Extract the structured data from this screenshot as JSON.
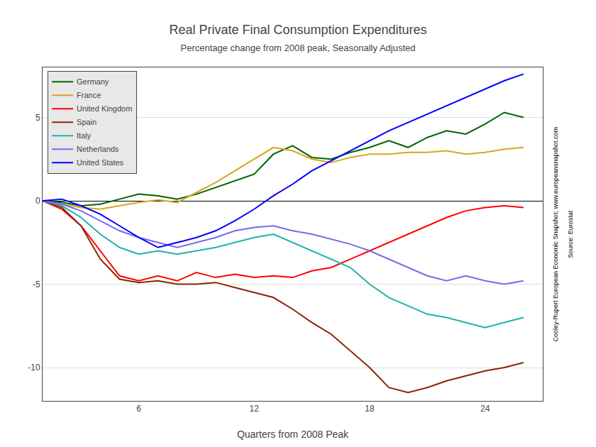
{
  "chart_data": {
    "type": "line",
    "title": "Real Private Final Consumption Expenditures",
    "subtitle": "Percentage change from 2008 peak, Seasonally Adjusted",
    "xlabel": "Quarters from 2008 Peak",
    "x": [
      1,
      2,
      3,
      4,
      5,
      6,
      7,
      8,
      9,
      10,
      11,
      12,
      13,
      14,
      15,
      16,
      17,
      18,
      19,
      20,
      21,
      22,
      23,
      24,
      25,
      26
    ],
    "xlim": [
      1,
      27
    ],
    "ylim": [
      -12,
      8
    ],
    "xticks": [
      6,
      12,
      18,
      24
    ],
    "yticks": [
      -10,
      -5,
      0,
      5
    ],
    "grid": "y",
    "legend": "upper left",
    "annotations": [
      "Cooley-Rupert European Economic Snapshot; www.europeansnapshot.com",
      "Source: Eurostat"
    ],
    "series": [
      {
        "name": "Germany",
        "color": "#006400",
        "values": [
          0.0,
          -0.1,
          -0.3,
          -0.2,
          0.1,
          0.4,
          0.3,
          0.1,
          0.4,
          0.8,
          1.2,
          1.6,
          2.8,
          3.3,
          2.6,
          2.5,
          2.9,
          3.2,
          3.6,
          3.2,
          3.8,
          4.2,
          4.0,
          4.6,
          5.3,
          5.0
        ]
      },
      {
        "name": "France",
        "color": "#DAA520",
        "values": [
          0.0,
          -0.2,
          -0.4,
          -0.5,
          -0.3,
          -0.1,
          0.05,
          -0.1,
          0.5,
          1.1,
          1.8,
          2.5,
          3.2,
          3.0,
          2.5,
          2.3,
          2.6,
          2.8,
          2.8,
          2.9,
          2.9,
          3.0,
          2.8,
          2.9,
          3.1,
          3.2
        ]
      },
      {
        "name": "United Kingdom",
        "color": "#FF0000",
        "values": [
          0.0,
          -0.5,
          -1.5,
          -3.0,
          -4.5,
          -4.8,
          -4.5,
          -4.8,
          -4.3,
          -4.6,
          -4.4,
          -4.6,
          -4.5,
          -4.6,
          -4.2,
          -4.0,
          -3.5,
          -3.0,
          -2.5,
          -2.0,
          -1.5,
          -1.0,
          -0.6,
          -0.4,
          -0.3,
          -0.4
        ]
      },
      {
        "name": "Spain",
        "color": "#8B2500",
        "values": [
          0.0,
          -0.4,
          -1.5,
          -3.5,
          -4.7,
          -4.9,
          -4.8,
          -5.0,
          -5.0,
          -4.9,
          -5.2,
          -5.5,
          -5.8,
          -6.5,
          -7.3,
          -8.0,
          -9.0,
          -10.0,
          -11.2,
          -11.5,
          -11.2,
          -10.8,
          -10.5,
          -10.2,
          -10.0,
          -9.7
        ]
      },
      {
        "name": "Italy",
        "color": "#20B2AA",
        "values": [
          0.0,
          -0.3,
          -1.0,
          -2.0,
          -2.8,
          -3.2,
          -3.0,
          -3.2,
          -3.0,
          -2.8,
          -2.5,
          -2.2,
          -2.0,
          -2.5,
          -3.0,
          -3.5,
          -4.0,
          -5.0,
          -5.8,
          -6.3,
          -6.8,
          -7.0,
          -7.3,
          -7.6,
          -7.3,
          -7.0
        ]
      },
      {
        "name": "Netherlands",
        "color": "#7B68EE",
        "values": [
          0.0,
          -0.2,
          -0.6,
          -1.2,
          -1.8,
          -2.2,
          -2.5,
          -2.8,
          -2.5,
          -2.2,
          -1.8,
          -1.6,
          -1.5,
          -1.8,
          -2.0,
          -2.3,
          -2.6,
          -3.0,
          -3.5,
          -4.0,
          -4.5,
          -4.8,
          -4.5,
          -4.8,
          -5.0,
          -4.8
        ]
      },
      {
        "name": "United States",
        "color": "#0000FF",
        "values": [
          0.0,
          0.1,
          -0.3,
          -0.8,
          -1.5,
          -2.2,
          -2.8,
          -2.5,
          -2.2,
          -1.8,
          -1.2,
          -0.5,
          0.3,
          1.0,
          1.8,
          2.4,
          3.0,
          3.6,
          4.2,
          4.7,
          5.2,
          5.7,
          6.2,
          6.7,
          7.2,
          7.6
        ]
      }
    ]
  }
}
